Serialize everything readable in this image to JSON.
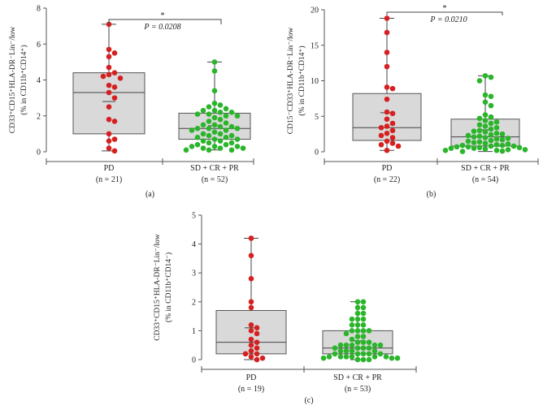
{
  "colors": {
    "pd": "#d62020",
    "responders": "#2bb52b",
    "box_fill": "#d9d9d9",
    "axis": "#555555"
  },
  "chart_data": [
    {
      "type": "box-dot",
      "panel_label": "(a)",
      "ylabel_line1": "CD33⁺CD15⁺HLA-DR⁻Lin⁻/low",
      "ylabel_line2": "(% in CD11b⁺CD14⁺)",
      "ylim": [
        0,
        8
      ],
      "yticks": [
        "0",
        "2",
        "4",
        "6",
        "8"
      ],
      "significance": {
        "star": "*",
        "p_text": "P = 0.0208"
      },
      "groups": [
        {
          "name": "PD",
          "n_label": "(n = 21)",
          "box": {
            "min": 0.05,
            "q1": 1.0,
            "median": 3.3,
            "q3": 4.4,
            "max": 7.1,
            "mean": 2.8
          },
          "values": [
            7.1,
            5.7,
            5.5,
            5.3,
            4.7,
            4.4,
            4.3,
            4.2,
            4.1,
            3.7,
            3.6,
            3.3,
            3.0,
            2.5,
            1.8,
            1.7,
            1.0,
            0.7,
            0.6,
            0.2,
            0.05
          ]
        },
        {
          "name": "SD + CR + PR",
          "n_label": "(n = 52)",
          "box": {
            "min": 0.1,
            "q1": 0.7,
            "median": 1.3,
            "q3": 2.15,
            "max": 5.0,
            "mean": 1.45
          },
          "values": [
            5.0,
            4.5,
            3.4,
            2.7,
            2.6,
            2.5,
            2.4,
            2.3,
            2.3,
            2.2,
            2.2,
            2.1,
            2.1,
            2.0,
            2.0,
            1.9,
            1.8,
            1.7,
            1.6,
            1.5,
            1.5,
            1.4,
            1.4,
            1.3,
            1.3,
            1.3,
            1.2,
            1.2,
            1.1,
            1.0,
            1.0,
            0.9,
            0.9,
            0.8,
            0.8,
            0.7,
            0.7,
            0.6,
            0.6,
            0.5,
            0.5,
            0.4,
            0.4,
            0.3,
            0.3,
            0.3,
            0.2,
            0.2,
            0.2,
            0.1,
            0.1,
            0.1
          ]
        }
      ]
    },
    {
      "type": "box-dot",
      "panel_label": "(b)",
      "ylabel_line1": "CD15⁻CD33⁺HLA-DR⁻Lin⁻/low",
      "ylabel_line2": "(% in CD11b⁺CD14⁺)",
      "ylim": [
        0,
        20
      ],
      "yticks": [
        "0",
        "5",
        "10",
        "15",
        "20"
      ],
      "significance": {
        "star": "*",
        "p_text": "P = 0.0210"
      },
      "groups": [
        {
          "name": "PD",
          "n_label": "(n = 22)",
          "box": {
            "min": 0.2,
            "q1": 1.6,
            "median": 3.4,
            "q3": 8.2,
            "max": 18.8,
            "mean": 5.5
          },
          "values": [
            18.8,
            16.8,
            14.0,
            12.0,
            9.1,
            8.9,
            7.4,
            5.6,
            5.4,
            4.6,
            4.0,
            3.6,
            3.4,
            3.0,
            2.6,
            2.3,
            2.0,
            1.5,
            1.2,
            1.0,
            0.8,
            0.2
          ]
        },
        {
          "name": "SD + CR + PR",
          "n_label": "(n = 54)",
          "box": {
            "min": 0.05,
            "q1": 0.8,
            "median": 2.1,
            "q3": 4.6,
            "max": 10.7,
            "mean": 3.1
          },
          "values": [
            10.7,
            10.5,
            10.0,
            8.0,
            7.8,
            7.0,
            6.5,
            5.2,
            4.9,
            4.7,
            4.4,
            4.2,
            4.0,
            3.8,
            3.6,
            3.4,
            3.2,
            3.0,
            2.9,
            2.8,
            2.6,
            2.5,
            2.4,
            2.3,
            2.2,
            2.1,
            2.0,
            1.9,
            1.8,
            1.7,
            1.6,
            1.5,
            1.4,
            1.3,
            1.2,
            1.1,
            1.0,
            0.9,
            0.9,
            0.8,
            0.8,
            0.7,
            0.7,
            0.6,
            0.6,
            0.5,
            0.5,
            0.4,
            0.3,
            0.3,
            0.2,
            0.2,
            0.1,
            0.05
          ]
        }
      ]
    },
    {
      "type": "box-dot",
      "panel_label": "(c)",
      "ylabel_line1": "CD33⁺CD15⁺HLA-DR⁻Lin⁻/low",
      "ylabel_line2": "(% in CD11b⁺CD14⁻)",
      "ylim": [
        0,
        5
      ],
      "yticks": [
        "0",
        "1",
        "2",
        "3",
        "4",
        "5"
      ],
      "significance": null,
      "groups": [
        {
          "name": "PD",
          "n_label": "(n = 19)",
          "box": {
            "min": 0.0,
            "q1": 0.2,
            "median": 0.6,
            "q3": 1.7,
            "max": 4.2,
            "mean": 1.1
          },
          "values": [
            4.2,
            3.6,
            2.8,
            2.0,
            1.8,
            1.2,
            1.1,
            1.0,
            0.9,
            0.7,
            0.6,
            0.5,
            0.4,
            0.3,
            0.2,
            0.2,
            0.1,
            0.05,
            0.0
          ]
        },
        {
          "name": "SD + CR + PR",
          "n_label": "(n = 53)",
          "box": {
            "min": 0.0,
            "q1": 0.2,
            "median": 0.4,
            "q3": 1.0,
            "max": 2.0,
            "mean": 0.65
          },
          "values": [
            2.0,
            2.0,
            1.8,
            1.8,
            1.6,
            1.6,
            1.4,
            1.4,
            1.4,
            1.2,
            1.2,
            1.2,
            1.0,
            1.0,
            1.0,
            1.0,
            0.9,
            0.8,
            0.8,
            0.7,
            0.6,
            0.6,
            0.6,
            0.5,
            0.5,
            0.5,
            0.5,
            0.5,
            0.4,
            0.4,
            0.4,
            0.4,
            0.3,
            0.3,
            0.3,
            0.3,
            0.2,
            0.2,
            0.2,
            0.2,
            0.2,
            0.1,
            0.1,
            0.1,
            0.1,
            0.1,
            0.1,
            0.05,
            0.05,
            0.05,
            0.0,
            0.0,
            0.0
          ]
        }
      ]
    }
  ]
}
